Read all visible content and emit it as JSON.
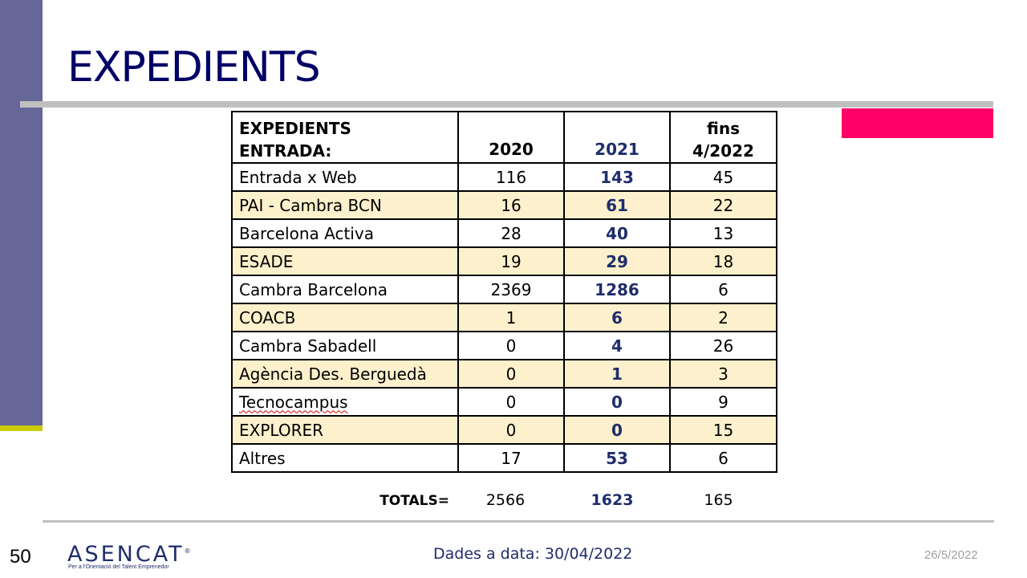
{
  "slide": {
    "title": "EXPEDIENTS",
    "page_number": "50",
    "footer_text": "Dades a data: 30/04/2022",
    "date": "26/5/2022",
    "logo_text": "ASENCAT",
    "logo_mark": "®",
    "logo_subtitle": "Per a l'Orientació del Talent Emprenedor"
  },
  "colors": {
    "sidebar": "#666699",
    "sidebar_accent": "#cccc00",
    "title": "#000066",
    "accent_pink": "#ff0066",
    "highlight_row": "#fdf0cc",
    "bold_2021": "#1f2d6b"
  },
  "table": {
    "header": {
      "name_line1": "EXPEDIENTS",
      "name_line2": "ENTRADA:",
      "col_2020": "2020",
      "col_2021": "2021",
      "col_2022_line1": "fins",
      "col_2022_line2": "4/2022"
    },
    "rows": [
      {
        "name": "Entrada x Web",
        "y2020": "116",
        "y2021": "143",
        "y2022": "45"
      },
      {
        "name": "PAI - Cambra BCN",
        "y2020": "16",
        "y2021": "61",
        "y2022": "22"
      },
      {
        "name": "Barcelona Activa",
        "y2020": "28",
        "y2021": "40",
        "y2022": "13"
      },
      {
        "name": "ESADE",
        "y2020": "19",
        "y2021": "29",
        "y2022": "18"
      },
      {
        "name": "Cambra Barcelona",
        "y2020": "2369",
        "y2021": "1286",
        "y2022": "6"
      },
      {
        "name": "COACB",
        "y2020": "1",
        "y2021": "6",
        "y2022": "2"
      },
      {
        "name": "Cambra Sabadell",
        "y2020": "0",
        "y2021": "4",
        "y2022": "26"
      },
      {
        "name": "Agència Des. Berguedà",
        "y2020": "0",
        "y2021": "1",
        "y2022": "3"
      },
      {
        "name": "Tecnocampus",
        "y2020": "0",
        "y2021": "0",
        "y2022": "9"
      },
      {
        "name": "EXPLORER",
        "y2020": "0",
        "y2021": "0",
        "y2022": "15"
      },
      {
        "name": "Altres",
        "y2020": "17",
        "y2021": "53",
        "y2022": "6"
      }
    ],
    "totals": {
      "label": "TOTALS=",
      "y2020": "2566",
      "y2021": "1623",
      "y2022": "165"
    }
  }
}
